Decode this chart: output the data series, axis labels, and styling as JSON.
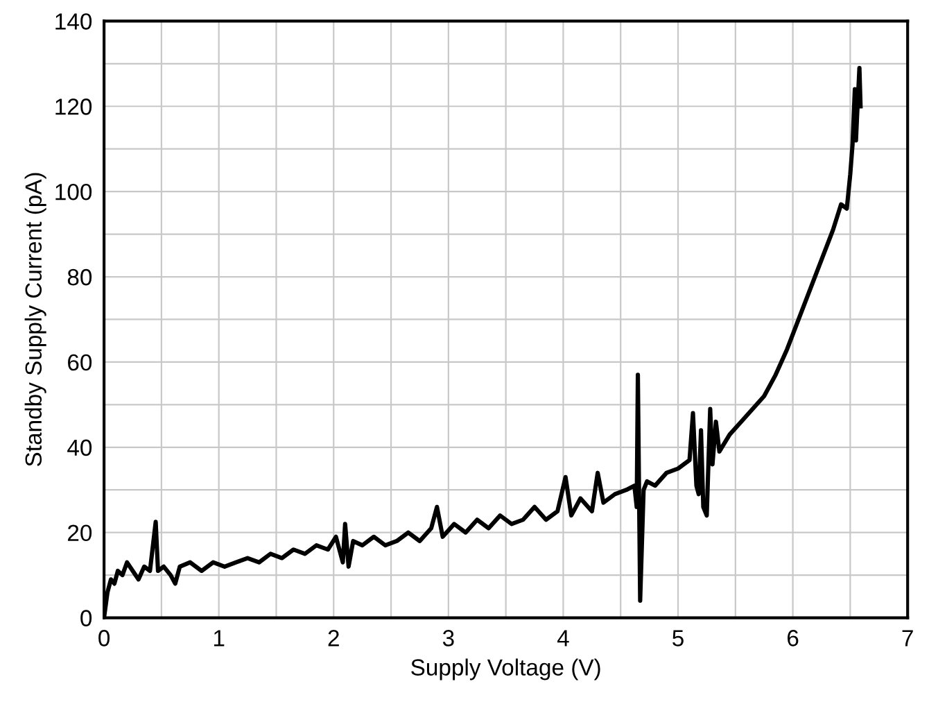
{
  "chart_data": {
    "type": "line",
    "xlabel": "Supply Voltage (V)",
    "ylabel": "Standby Supply Current (pA)",
    "xlim": [
      0,
      7
    ],
    "ylim": [
      0,
      140
    ],
    "xticks": [
      0,
      {
        "value": 0.5,
        "label": null
      },
      1,
      {
        "value": 1.5,
        "label": null
      },
      2,
      {
        "value": 2.5,
        "label": null
      },
      3,
      {
        "value": 3.5,
        "label": null
      },
      4,
      {
        "value": 4.5,
        "label": null
      },
      5,
      {
        "value": 5.5,
        "label": null
      },
      6,
      {
        "value": 6.5,
        "label": null
      },
      7
    ],
    "yticks": [
      0,
      {
        "value": 10,
        "label": null
      },
      20,
      {
        "value": 30,
        "label": null
      },
      40,
      {
        "value": 50,
        "label": null
      },
      60,
      {
        "value": 70,
        "label": null
      },
      80,
      {
        "value": 90,
        "label": null
      },
      100,
      {
        "value": 110,
        "label": null
      },
      120,
      {
        "value": 130,
        "label": null
      },
      140
    ],
    "grid": true,
    "line_style": "solid",
    "marker": "none",
    "series": [
      {
        "color": "#000000",
        "x": [
          0.0,
          0.03,
          0.06,
          0.09,
          0.12,
          0.16,
          0.2,
          0.25,
          0.3,
          0.35,
          0.4,
          0.45,
          0.47,
          0.52,
          0.58,
          0.62,
          0.66,
          0.75,
          0.85,
          0.95,
          1.05,
          1.15,
          1.25,
          1.35,
          1.45,
          1.55,
          1.65,
          1.75,
          1.85,
          1.95,
          2.02,
          2.08,
          2.1,
          2.13,
          2.17,
          2.25,
          2.35,
          2.45,
          2.55,
          2.65,
          2.75,
          2.85,
          2.9,
          2.95,
          3.05,
          3.15,
          3.25,
          3.35,
          3.45,
          3.55,
          3.65,
          3.75,
          3.85,
          3.95,
          4.02,
          4.07,
          4.15,
          4.25,
          4.3,
          4.35,
          4.45,
          4.55,
          4.62,
          4.64,
          4.65,
          4.67,
          4.7,
          4.73,
          4.8,
          4.9,
          5.0,
          5.1,
          5.13,
          5.16,
          5.18,
          5.2,
          5.22,
          5.25,
          5.28,
          5.3,
          5.33,
          5.36,
          5.45,
          5.55,
          5.65,
          5.75,
          5.85,
          5.95,
          6.05,
          6.15,
          6.25,
          6.35,
          6.42,
          6.47,
          6.5,
          6.52,
          6.54,
          6.55,
          6.56,
          6.58,
          6.59
        ],
        "values": [
          0,
          6,
          9,
          8,
          11,
          10,
          13,
          11,
          9,
          12,
          11,
          22.5,
          11,
          12,
          10,
          8,
          12,
          13,
          11,
          13,
          12,
          13,
          14,
          13,
          15,
          14,
          16,
          15,
          17,
          16,
          19,
          13,
          22,
          12,
          18,
          17,
          19,
          17,
          18,
          20,
          18,
          21,
          26,
          19,
          22,
          20,
          23,
          21,
          24,
          22,
          23,
          26,
          23,
          25,
          33,
          24,
          28,
          25,
          34,
          27,
          29,
          30,
          31,
          26,
          57,
          4,
          30,
          32,
          31,
          34,
          35,
          37,
          48,
          31,
          29,
          44,
          26,
          24,
          49,
          36,
          46,
          39,
          43,
          46,
          49,
          52,
          57,
          63,
          70,
          77,
          84,
          91,
          97,
          96,
          104,
          111,
          124,
          112,
          118,
          129,
          120
        ]
      }
    ]
  }
}
